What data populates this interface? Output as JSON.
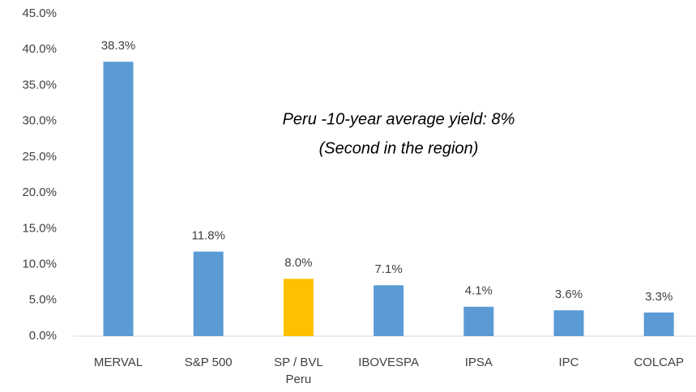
{
  "chart_data": {
    "type": "bar",
    "categories": [
      "MERVAL",
      "S&P 500",
      "SP / BVL Peru",
      "IBOVESPA",
      "IPSA",
      "IPC",
      "COLCAP"
    ],
    "values": [
      38.3,
      11.8,
      8.0,
      7.1,
      4.1,
      3.6,
      3.3
    ],
    "value_labels": [
      "38.3%",
      "11.8%",
      "8.0%",
      "7.1%",
      "4.1%",
      "3.6%",
      "3.3%"
    ],
    "colors": [
      "#5b9bd5",
      "#5b9bd5",
      "#ffc000",
      "#5b9bd5",
      "#5b9bd5",
      "#5b9bd5",
      "#5b9bd5"
    ],
    "annotations": [
      "Peru -10-year average yield: 8%",
      "(Second in the region)"
    ],
    "ylim": [
      0,
      45
    ],
    "yticks": [
      {
        "value": 0,
        "label": "0.0%"
      },
      {
        "value": 5,
        "label": "5.0%"
      },
      {
        "value": 10,
        "label": "10.0%"
      },
      {
        "value": 15,
        "label": "15.0%"
      },
      {
        "value": 20,
        "label": "20.0%"
      },
      {
        "value": 25,
        "label": "25.0%"
      },
      {
        "value": 30,
        "label": "30.0%"
      },
      {
        "value": 35,
        "label": "35.0%"
      },
      {
        "value": 40,
        "label": "40.0%"
      },
      {
        "value": 45,
        "label": "45.0%"
      }
    ],
    "grid": false
  }
}
